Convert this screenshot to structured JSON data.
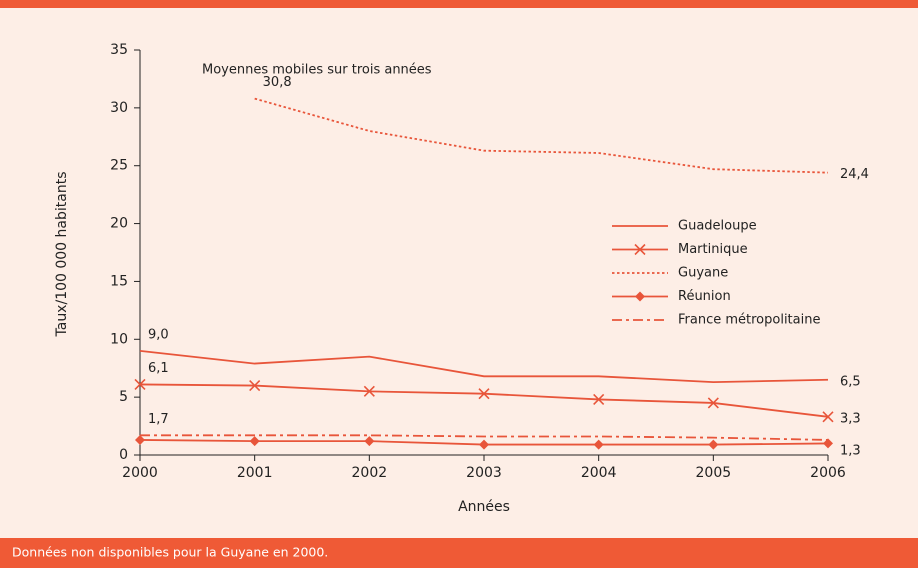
{
  "chart_data": {
    "type": "line",
    "annotation": "Moyennes mobiles sur trois années",
    "xlabel": "Années",
    "ylabel": "Taux/100 000 habitants",
    "footnote": "Données non disponibles pour la Guyane en 2000.",
    "x": [
      2000,
      2001,
      2002,
      2003,
      2004,
      2005,
      2006
    ],
    "xlim": [
      2000,
      2006
    ],
    "xticks": [
      2000,
      2001,
      2002,
      2003,
      2004,
      2005,
      2006
    ],
    "ylim": [
      0,
      35
    ],
    "yticks": [
      0,
      5,
      10,
      15,
      20,
      25,
      30,
      35
    ],
    "legend": "right",
    "series": [
      {
        "name": "Guadeloupe",
        "color": "#e8553a",
        "dash": "solid",
        "marker": "none",
        "values": [
          9.0,
          7.9,
          8.5,
          6.8,
          6.8,
          6.3,
          6.5
        ],
        "value_labels": [
          "9,0",
          null,
          null,
          null,
          null,
          null,
          "6,5"
        ]
      },
      {
        "name": "Martinique",
        "color": "#e8553a",
        "dash": "solid",
        "marker": "x",
        "values": [
          6.1,
          6.0,
          5.5,
          5.3,
          4.8,
          4.5,
          3.3
        ],
        "value_labels": [
          "6,1",
          null,
          null,
          null,
          null,
          null,
          "3,3"
        ]
      },
      {
        "name": "Guyane",
        "color": "#e8553a",
        "dash": "dotted",
        "marker": "none",
        "values": [
          null,
          30.8,
          28.0,
          26.3,
          26.1,
          24.7,
          24.4
        ],
        "value_labels": [
          null,
          "30,8",
          null,
          null,
          null,
          null,
          "24,4"
        ]
      },
      {
        "name": "Réunion",
        "color": "#e8553a",
        "dash": "solid",
        "marker": "diamond",
        "values": [
          1.3,
          1.2,
          1.2,
          0.9,
          0.9,
          0.9,
          1.0
        ]
      },
      {
        "name": "France métropolitaine",
        "color": "#e8553a",
        "dash": "dashdot",
        "marker": "none",
        "values": [
          1.7,
          1.7,
          1.7,
          1.6,
          1.6,
          1.5,
          1.3
        ],
        "value_labels": [
          "1,7",
          null,
          null,
          null,
          null,
          null,
          "1,3"
        ]
      }
    ]
  }
}
